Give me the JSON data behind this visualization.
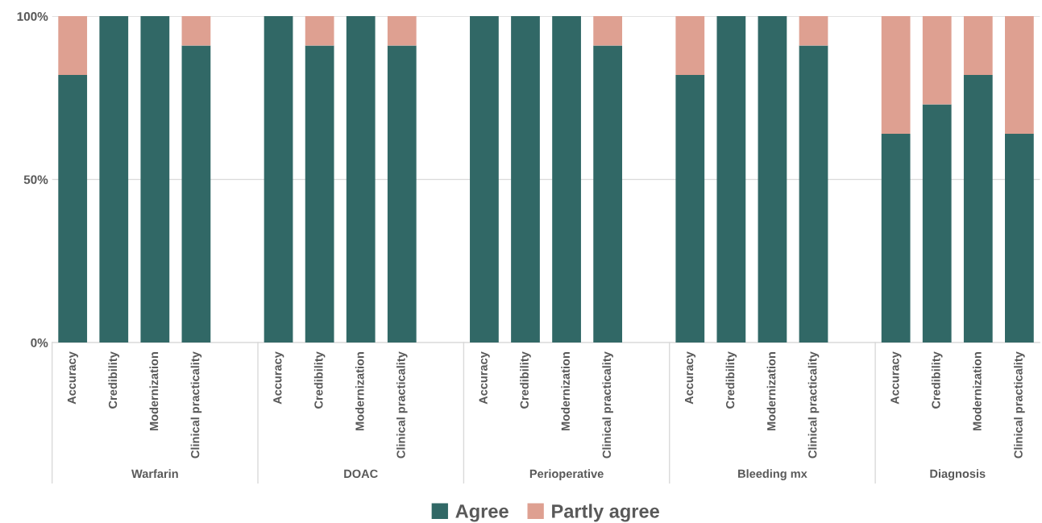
{
  "chart_data": {
    "type": "bar",
    "stacked": true,
    "categories": [
      "Accuracy",
      "Credibility",
      "Modernization",
      "Clinical practicality",
      null,
      "Accuracy",
      "Credibility",
      "Modernization",
      "Clinical practicality",
      null,
      "Accuracy",
      "Credibility",
      "Modernization",
      "Clinical practicality",
      null,
      "Accuracy",
      "Credibility",
      "Modernization",
      "Clinical practicality",
      null,
      "Accuracy",
      "Credibility",
      "Modernization",
      "Clinical practicality"
    ],
    "series": [
      {
        "name": "Agree",
        "color": "#316866",
        "values": [
          82,
          100,
          100,
          91,
          null,
          100,
          91,
          100,
          91,
          null,
          100,
          100,
          100,
          91,
          null,
          82,
          100,
          100,
          91,
          null,
          64,
          73,
          82,
          64
        ]
      },
      {
        "name": "Partly agree",
        "color": "#dea091",
        "values": [
          18,
          0,
          0,
          9,
          null,
          0,
          9,
          0,
          9,
          null,
          0,
          0,
          0,
          9,
          null,
          18,
          0,
          0,
          9,
          null,
          36,
          27,
          18,
          36
        ]
      }
    ],
    "ylim": [
      0,
      100
    ],
    "yticks": [
      {
        "value": 0,
        "label": "0%"
      },
      {
        "value": 50,
        "label": "50%"
      },
      {
        "value": 100,
        "label": "100%"
      }
    ],
    "grid": "y",
    "legend": "bottom",
    "annotations": [
      "Warfarin",
      "DOAC",
      "Perioperative",
      "Bleeding mx",
      "Diagnosis"
    ]
  }
}
